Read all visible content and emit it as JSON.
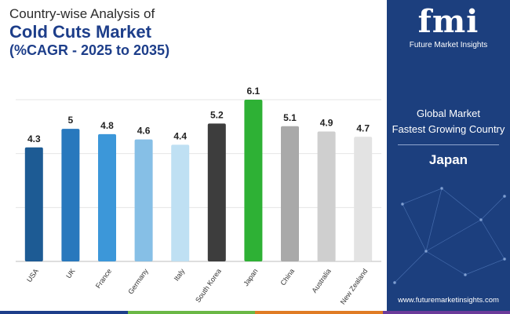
{
  "title": {
    "line1": "Country-wise Analysis of",
    "line2": "Cold Cuts Market",
    "line3": "(%CAGR - 2025 to 2035)"
  },
  "sidebar": {
    "logo_mark": "fmi",
    "logo_text": "Future Market Insights",
    "subtitle1": "Global Market",
    "subtitle2": "Fastest Growing Country",
    "country": "Japan",
    "url": "www.futuremarketinsights.com"
  },
  "colors": {
    "title_blue": "#1d3e8a",
    "sidebar_blue": "#1c3f7e",
    "strip": [
      "#1d3e8a",
      "#6ab845",
      "#e07c24",
      "#6b3b9a"
    ]
  },
  "chart_data": {
    "type": "bar",
    "categories": [
      "USA",
      "UK",
      "France",
      "Germany",
      "Italy",
      "South Korea",
      "Japan",
      "China",
      "Australia",
      "New Zealand"
    ],
    "values": [
      4.3,
      5,
      4.8,
      4.6,
      4.4,
      5.2,
      6.1,
      5.1,
      4.9,
      4.7
    ],
    "value_labels": [
      "4.3",
      "5",
      "4.8",
      "4.6",
      "4.4",
      "5.2",
      "6.1",
      "5.1",
      "4.9",
      "4.7"
    ],
    "colors": [
      "#1d5b94",
      "#2878bd",
      "#3c97d9",
      "#86bfe6",
      "#bfe0f3",
      "#3d3d3d",
      "#2eb135",
      "#a9a9a9",
      "#cfcfcf",
      "#e3e3e3"
    ],
    "ylim": [
      0,
      6.1
    ],
    "grid": true,
    "legend": "none",
    "title": "",
    "xlabel": "",
    "ylabel": ""
  }
}
